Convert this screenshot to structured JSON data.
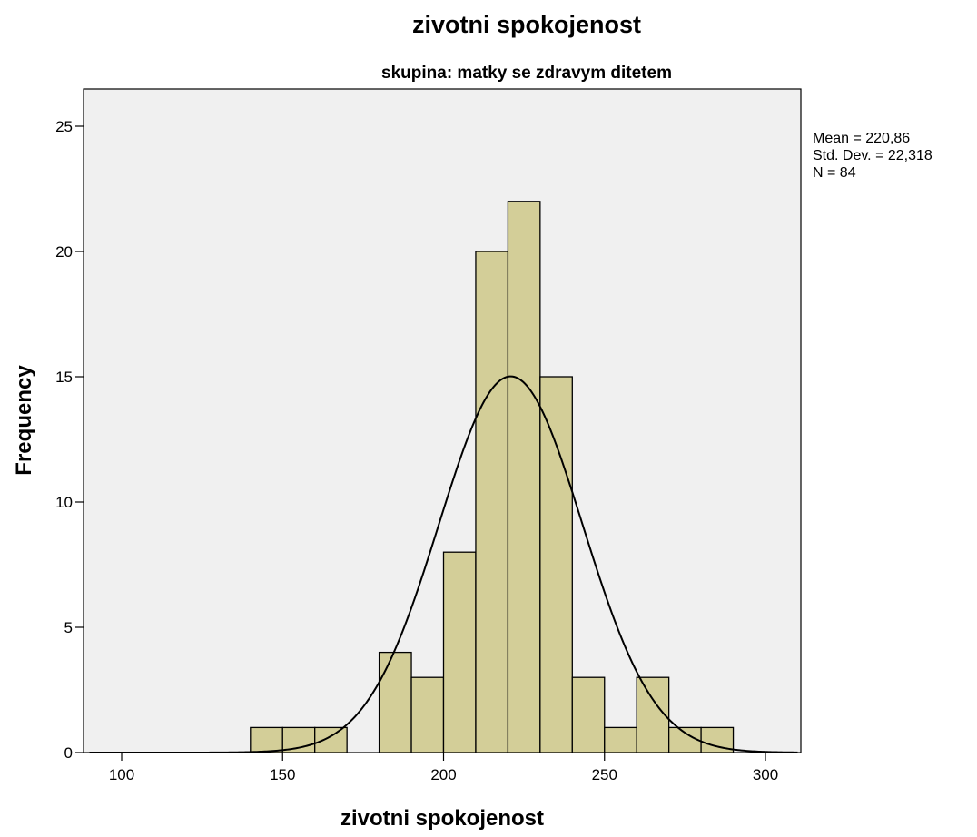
{
  "chart_data": {
    "type": "bar",
    "title": "zivotni spokojenost",
    "subtitle": "skupina: matky se zdravym ditetem",
    "xlabel": "zivotni spokojenost",
    "ylabel": "Frequency",
    "xlim": [
      90,
      310
    ],
    "ylim": [
      0,
      26
    ],
    "x_ticks": [
      100,
      150,
      200,
      250,
      300
    ],
    "y_ticks": [
      0,
      5,
      10,
      15,
      20,
      25
    ],
    "bin_width": 10,
    "bins": [
      {
        "start": 140,
        "end": 150,
        "count": 1
      },
      {
        "start": 150,
        "end": 160,
        "count": 1
      },
      {
        "start": 160,
        "end": 170,
        "count": 1
      },
      {
        "start": 180,
        "end": 190,
        "count": 4
      },
      {
        "start": 190,
        "end": 200,
        "count": 3
      },
      {
        "start": 200,
        "end": 210,
        "count": 8
      },
      {
        "start": 210,
        "end": 220,
        "count": 20
      },
      {
        "start": 220,
        "end": 230,
        "count": 22
      },
      {
        "start": 230,
        "end": 240,
        "count": 15
      },
      {
        "start": 240,
        "end": 250,
        "count": 3
      },
      {
        "start": 250,
        "end": 260,
        "count": 1
      },
      {
        "start": 260,
        "end": 270,
        "count": 3
      },
      {
        "start": 270,
        "end": 280,
        "count": 1
      },
      {
        "start": 280,
        "end": 290,
        "count": 1
      }
    ],
    "normal_curve": {
      "mean": 220.86,
      "std_dev": 22.318,
      "n": 84
    },
    "stats_text": [
      "Mean = 220,86",
      "Std. Dev. = 22,318",
      "N = 84"
    ],
    "grid": false,
    "colors": {
      "bar_fill": "#d3ce98",
      "bar_stroke": "#000000",
      "plot_bg": "#f0f0f0",
      "curve": "#000000"
    }
  }
}
